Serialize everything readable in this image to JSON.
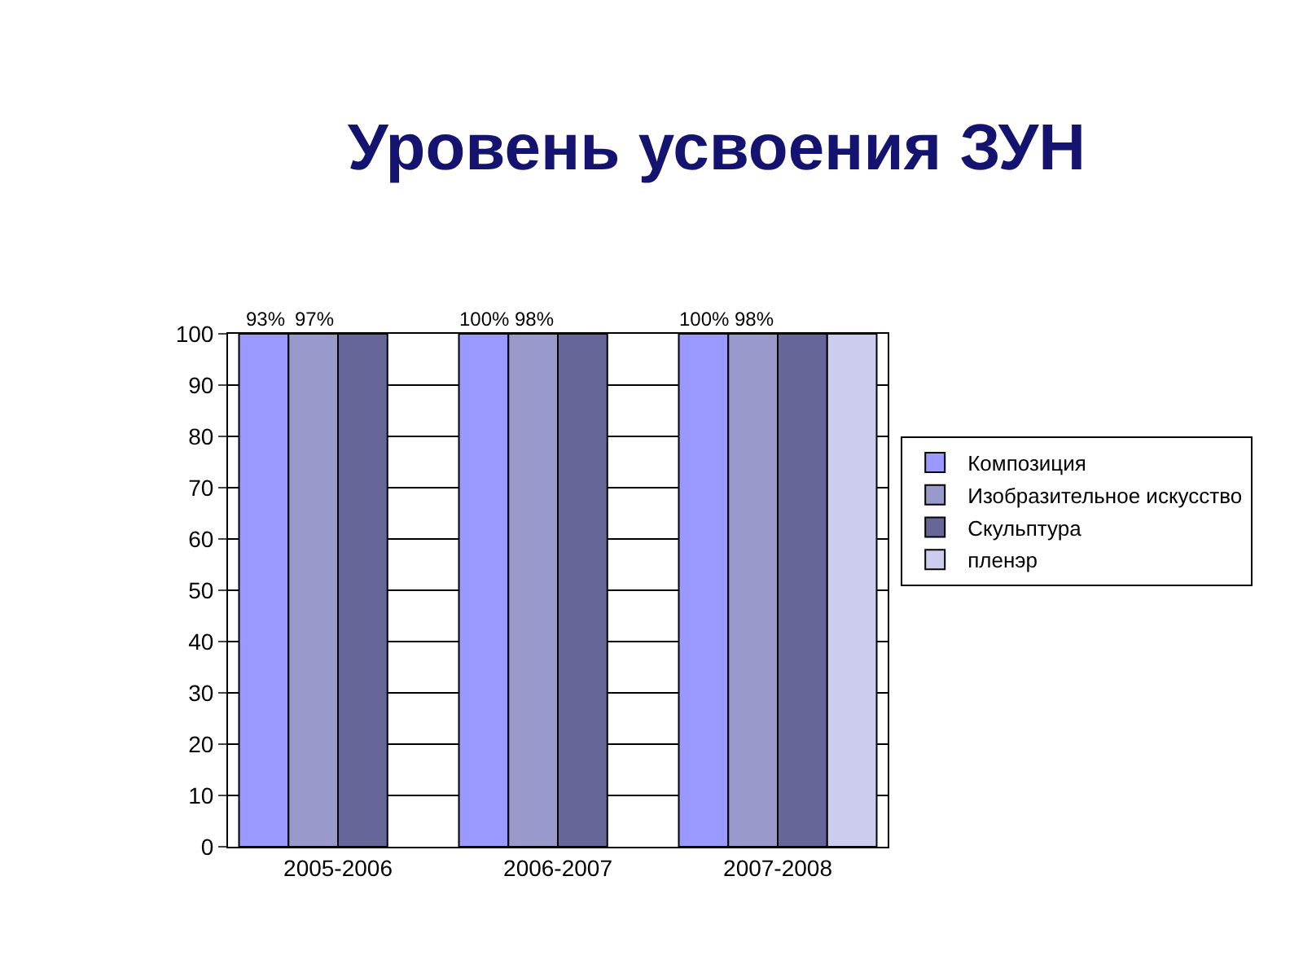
{
  "chart_data": {
    "type": "bar",
    "title": "Уровень усвоения ЗУН",
    "categories": [
      "2005-2006",
      "2006-2007",
      "2007-2008"
    ],
    "series": [
      {
        "name": "Композиция",
        "color": "#9999ff",
        "values": [
          100,
          100,
          100
        ]
      },
      {
        "name": "Изобразительное искусство",
        "color": "#9999cc",
        "values": [
          100,
          100,
          100
        ]
      },
      {
        "name": "Скульптура",
        "color": "#666699",
        "values": [
          100,
          100,
          100
        ]
      },
      {
        "name": "пленэр",
        "color": "#ccccee",
        "values": [
          null,
          null,
          100
        ]
      }
    ],
    "annotations": [
      {
        "text": "93%",
        "x": "2005-2006",
        "y": 100
      },
      {
        "text": "97%",
        "x": "2005-2006",
        "y": 100
      },
      {
        "text": "100%",
        "x": "2006-2007",
        "y": 100
      },
      {
        "text": "98%",
        "x": "2006-2007",
        "y": 100
      },
      {
        "text": "100%",
        "x": "2007-2008",
        "y": 100
      },
      {
        "text": "98%",
        "x": "2007-2008",
        "y": 100
      }
    ],
    "ylim": [
      0,
      100
    ],
    "yticks": [
      0,
      10,
      20,
      30,
      40,
      50,
      60,
      70,
      80,
      90,
      100
    ],
    "grid": "y",
    "legend": "right"
  }
}
